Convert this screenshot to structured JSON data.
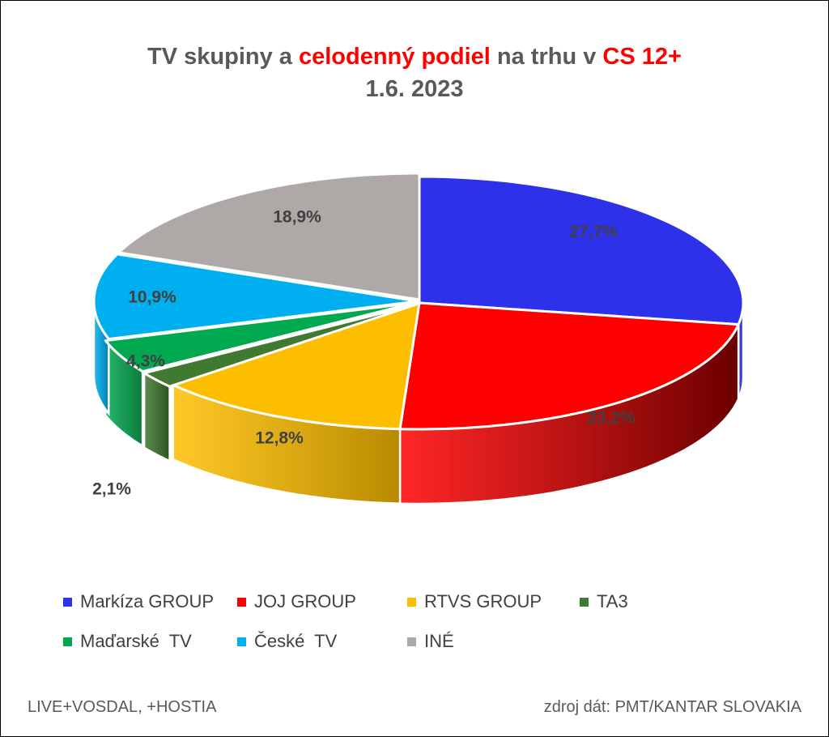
{
  "title": {
    "line1_part1": "TV skupiny a ",
    "line1_highlight1": "celodenný podiel",
    "line1_part2": " na trhu v ",
    "line1_highlight2": "CS 12+",
    "line2": "1.6. 2023"
  },
  "footer": {
    "left": "LIVE+VOSDAL, +HOSTIA",
    "right": "zdroj dát: PMT/KANTAR SLOVAKIA"
  },
  "colors": {
    "title_text": "#595959",
    "title_highlight": "#ff0000"
  },
  "chart_data": {
    "type": "pie",
    "style": "3d-exploded",
    "legend_position": "bottom",
    "categories": [
      "Markíza GROUP",
      "JOJ GROUP",
      "RTVS GROUP",
      "TA3",
      "Maďarské  TV",
      "České  TV",
      "INÉ"
    ],
    "values": [
      27.7,
      23.2,
      12.8,
      2.1,
      4.3,
      10.9,
      18.9
    ],
    "labels": [
      "27,7%",
      "23,2%",
      "12,8%",
      "2,1%",
      "4,3%",
      "10,9%",
      "18,9%"
    ],
    "colors": [
      "#2e31ea",
      "#fe0000",
      "#fdbe00",
      "#3f7a30",
      "#00a84f",
      "#00afef",
      "#aea9a7"
    ],
    "side_colors": [
      "#2a2ca8",
      "#6a0000",
      "#b88a00",
      "#2c5322",
      "#0b7a3c",
      "#0080b0",
      "#7e7a78"
    ]
  }
}
